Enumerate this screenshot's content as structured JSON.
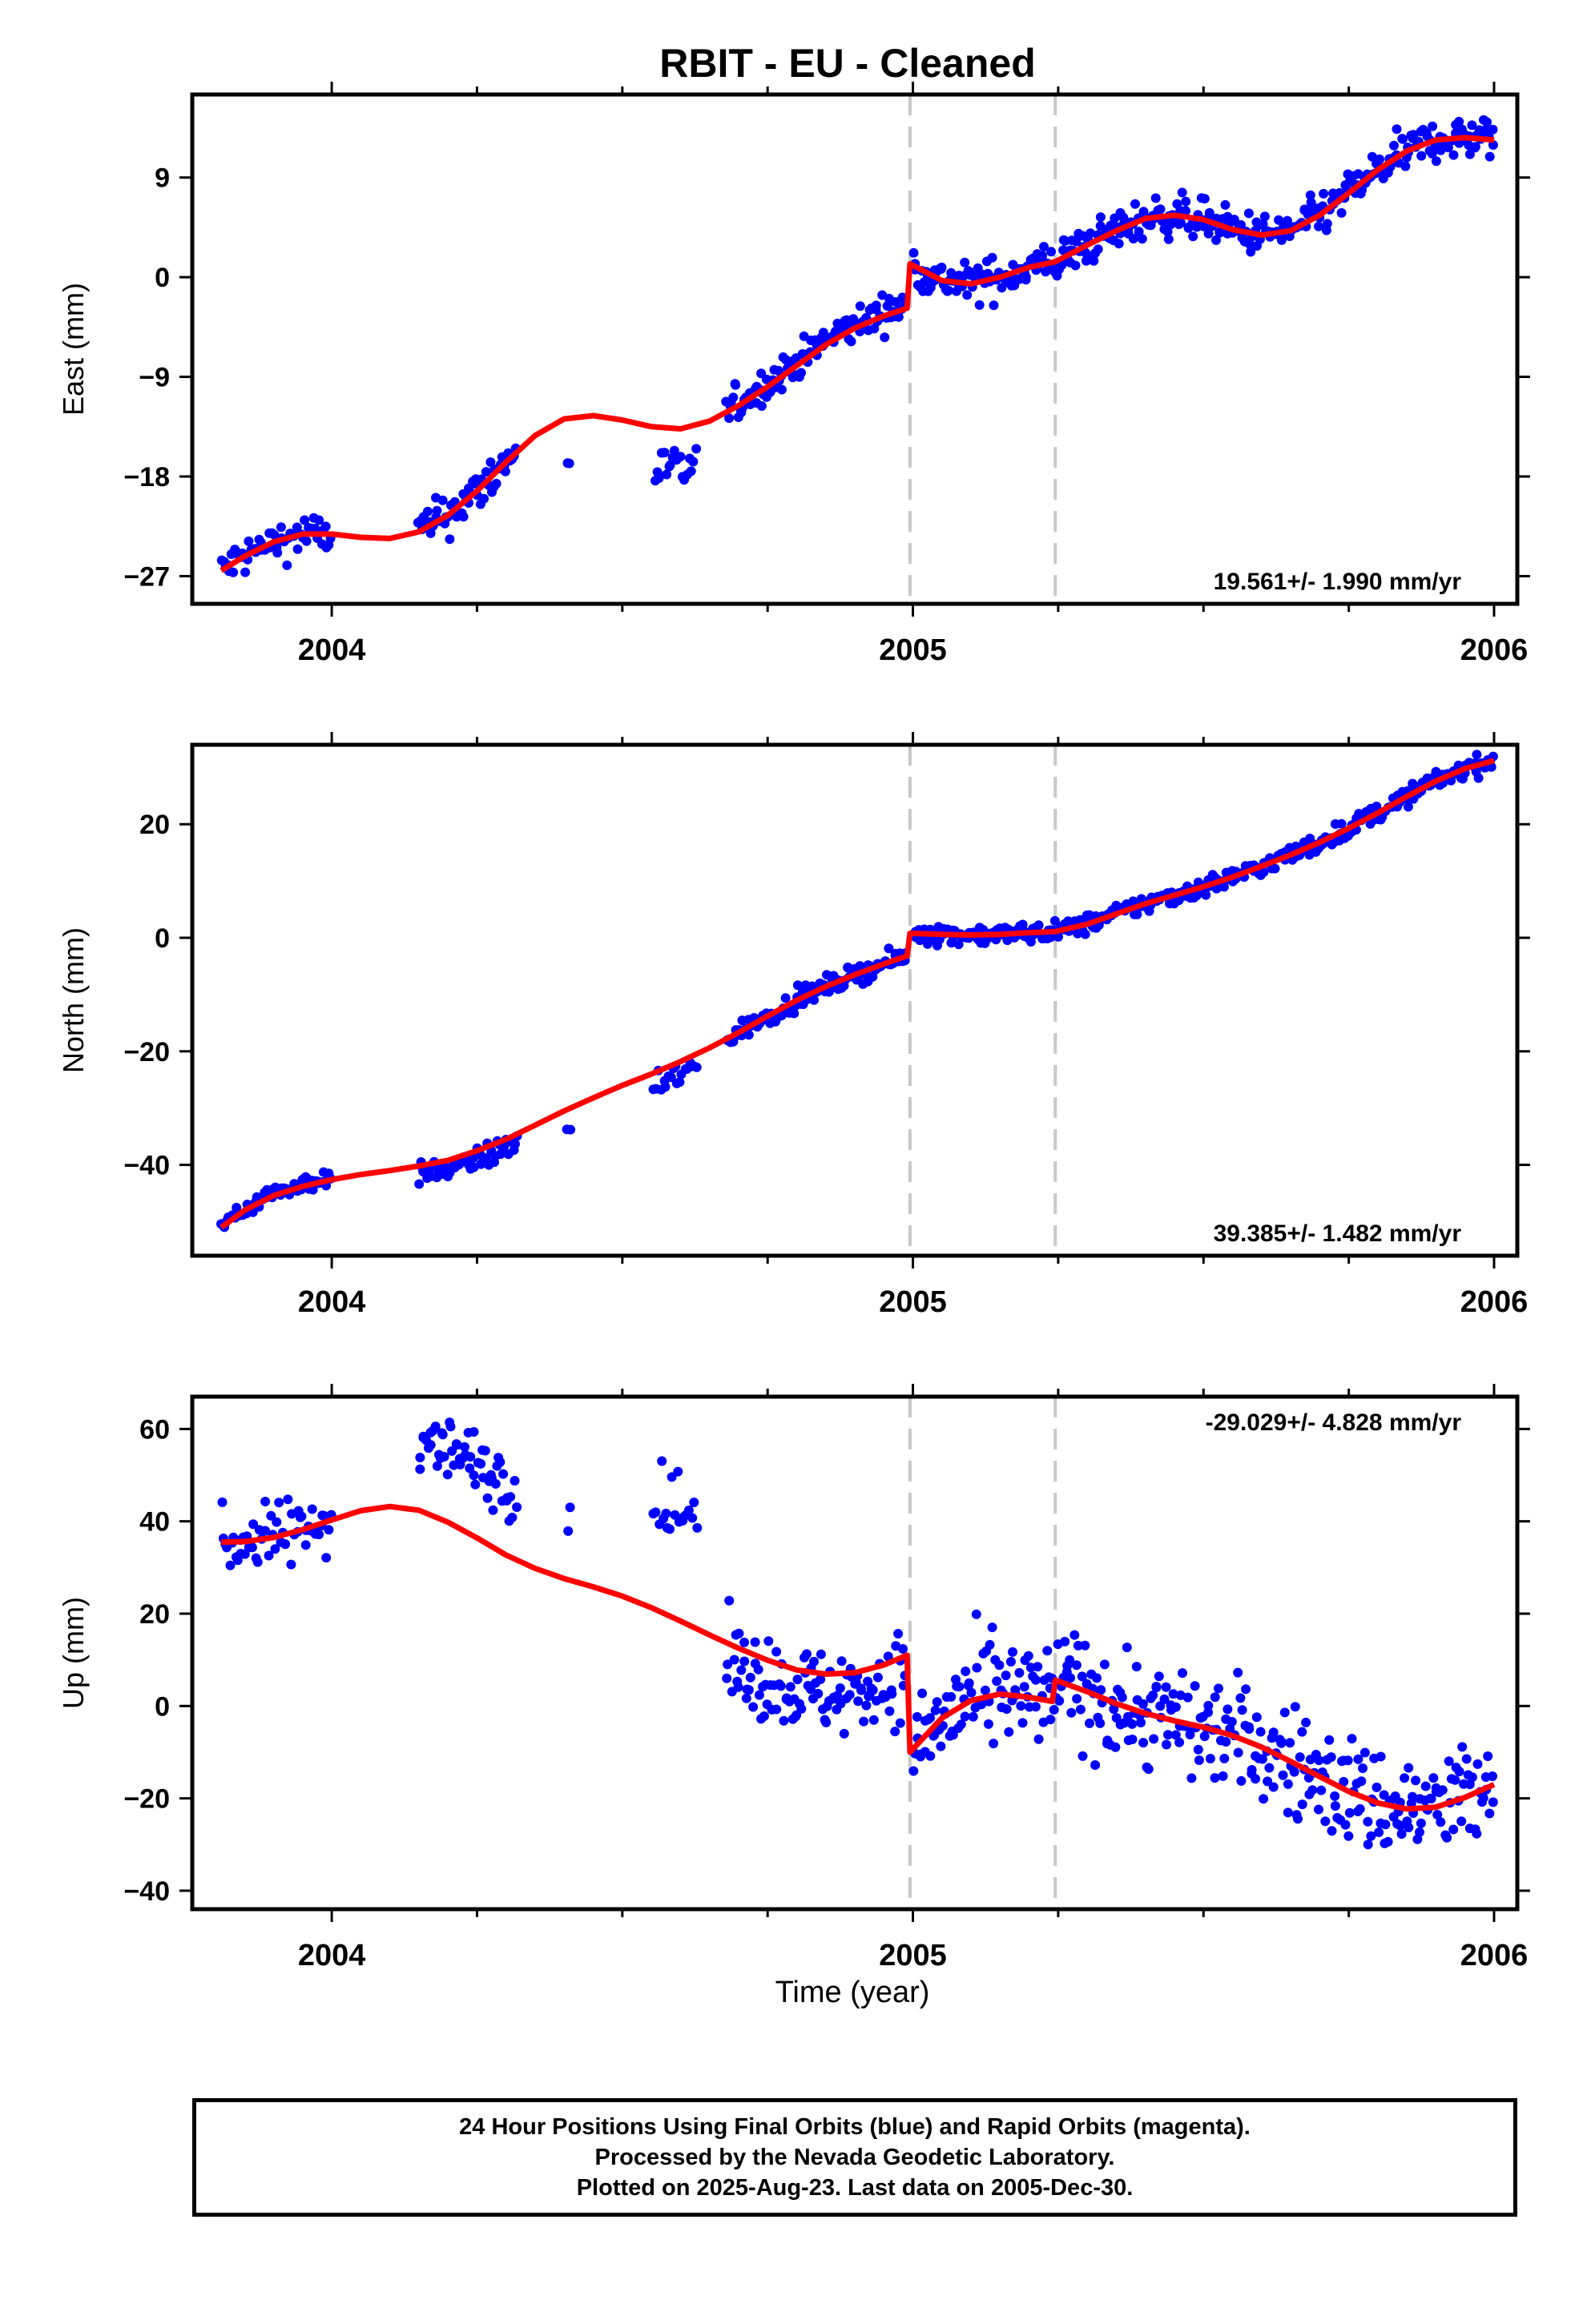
{
  "chart_data": {
    "title": "RBIT  - EU - Cleaned",
    "xlabel": "Time (year)",
    "xlim": [
      2003.76,
      2006.04
    ],
    "x_ticks": [
      2004,
      2005,
      2006
    ],
    "x_tick_labels": [
      "2004",
      "2005",
      "2006"
    ],
    "x_minor_ticks": [
      2004.25,
      2004.5,
      2004.75,
      2005.25,
      2005.5,
      2005.75
    ],
    "breaks": [
      2004.995,
      2005.245
    ],
    "colors": {
      "points": "#0000ff",
      "fit": "#ff0000",
      "breaks": "#c8c8c8",
      "frame": "#000000"
    },
    "panels": [
      {
        "type": "scatter",
        "ylabel": "East (mm)",
        "ylim": [
          -29.5,
          16.5
        ],
        "y_ticks": [
          -27,
          -18,
          -9,
          0,
          9
        ],
        "y_tick_labels": [
          "−27",
          "−18",
          "−9",
          "0",
          "9"
        ],
        "rate": "19.561+/- 1.990 mm/yr",
        "rate_position": "bottom-right",
        "fit_knots": [
          [
            2003.81,
            -26.5
          ],
          [
            2003.85,
            -25.2
          ],
          [
            2003.9,
            -23.9
          ],
          [
            2003.95,
            -23.2
          ],
          [
            2004.0,
            -23.2
          ],
          [
            2004.05,
            -23.5
          ],
          [
            2004.1,
            -23.6
          ],
          [
            2004.15,
            -23.0
          ],
          [
            2004.2,
            -21.5
          ],
          [
            2004.25,
            -19.3
          ],
          [
            2004.3,
            -16.7
          ],
          [
            2004.35,
            -14.3
          ],
          [
            2004.4,
            -12.8
          ],
          [
            2004.45,
            -12.5
          ],
          [
            2004.5,
            -12.9
          ],
          [
            2004.55,
            -13.5
          ],
          [
            2004.6,
            -13.7
          ],
          [
            2004.65,
            -13.0
          ],
          [
            2004.7,
            -11.6
          ],
          [
            2004.75,
            -9.9
          ],
          [
            2004.8,
            -8.0
          ],
          [
            2004.85,
            -6.1
          ],
          [
            2004.9,
            -4.6
          ],
          [
            2004.95,
            -3.5
          ],
          [
            2004.99,
            -2.8
          ],
          [
            2004.995,
            1.2
          ],
          [
            2005.05,
            -0.3
          ],
          [
            2005.1,
            -0.6
          ],
          [
            2005.15,
            0.0
          ],
          [
            2005.2,
            0.9
          ],
          [
            2005.245,
            1.4
          ],
          [
            2005.3,
            2.9
          ],
          [
            2005.35,
            4.2
          ],
          [
            2005.4,
            5.3
          ],
          [
            2005.45,
            5.6
          ],
          [
            2005.5,
            5.2
          ],
          [
            2005.55,
            4.3
          ],
          [
            2005.6,
            3.8
          ],
          [
            2005.65,
            4.2
          ],
          [
            2005.7,
            5.6
          ],
          [
            2005.75,
            7.6
          ],
          [
            2005.8,
            9.7
          ],
          [
            2005.85,
            11.4
          ],
          [
            2005.9,
            12.4
          ],
          [
            2005.95,
            12.6
          ],
          [
            2006.0,
            12.4
          ]
        ],
        "point_segments": [
          {
            "start": 2003.81,
            "end": 2004.0,
            "step": 0.0035,
            "fit_offset": 0,
            "noise": 1.3
          },
          {
            "start": 2004.15,
            "end": 2004.32,
            "step": 0.003,
            "fit_offset": 0,
            "noise": 1.4
          },
          {
            "start": 2004.405,
            "end": 2004.41,
            "step": 0.004,
            "fit_offset": -3.9,
            "noise": 0.5
          },
          {
            "start": 2004.555,
            "end": 2004.63,
            "step": 0.004,
            "fit_offset": -3.8,
            "noise": 1.4
          },
          {
            "start": 2004.68,
            "end": 2004.99,
            "step": 0.0028,
            "fit_offset": 0.3,
            "noise": 1.1
          },
          {
            "start": 2005.0,
            "end": 2006.0,
            "step": 0.0028,
            "fit_offset": 0,
            "noise": 1.3
          }
        ]
      },
      {
        "type": "scatter",
        "ylabel": "North (mm)",
        "ylim": [
          -56,
          34
        ],
        "y_ticks": [
          -40,
          -20,
          0,
          20
        ],
        "y_tick_labels": [
          "−40",
          "−20",
          "0",
          "20"
        ],
        "rate": "39.385+/- 1.482 mm/yr",
        "rate_position": "bottom-right",
        "fit_knots": [
          [
            2003.81,
            -51.0
          ],
          [
            2003.85,
            -48.0
          ],
          [
            2003.9,
            -45.4
          ],
          [
            2003.95,
            -43.8
          ],
          [
            2004.0,
            -42.6
          ],
          [
            2004.05,
            -41.7
          ],
          [
            2004.1,
            -41.0
          ],
          [
            2004.15,
            -40.2
          ],
          [
            2004.2,
            -39.2
          ],
          [
            2004.25,
            -37.5
          ],
          [
            2004.3,
            -35.5
          ],
          [
            2004.35,
            -33.0
          ],
          [
            2004.4,
            -30.5
          ],
          [
            2004.45,
            -28.2
          ],
          [
            2004.5,
            -26.0
          ],
          [
            2004.55,
            -24.0
          ],
          [
            2004.6,
            -21.8
          ],
          [
            2004.65,
            -19.4
          ],
          [
            2004.7,
            -16.7
          ],
          [
            2004.75,
            -13.8
          ],
          [
            2004.8,
            -11.0
          ],
          [
            2004.85,
            -8.6
          ],
          [
            2004.9,
            -6.5
          ],
          [
            2004.95,
            -4.6
          ],
          [
            2004.99,
            -3.2
          ],
          [
            2004.995,
            0.8
          ],
          [
            2005.05,
            0.6
          ],
          [
            2005.1,
            0.5
          ],
          [
            2005.15,
            0.6
          ],
          [
            2005.2,
            0.9
          ],
          [
            2005.245,
            1.1
          ],
          [
            2005.3,
            2.4
          ],
          [
            2005.35,
            4.2
          ],
          [
            2005.4,
            6.0
          ],
          [
            2005.45,
            7.5
          ],
          [
            2005.5,
            9.0
          ],
          [
            2005.55,
            10.7
          ],
          [
            2005.6,
            12.6
          ],
          [
            2005.65,
            14.6
          ],
          [
            2005.7,
            16.8
          ],
          [
            2005.75,
            19.3
          ],
          [
            2005.8,
            22.0
          ],
          [
            2005.85,
            24.9
          ],
          [
            2005.9,
            27.6
          ],
          [
            2005.95,
            29.8
          ],
          [
            2006.0,
            31.2
          ]
        ],
        "point_segments": [
          {
            "start": 2003.81,
            "end": 2004.0,
            "step": 0.0035,
            "fit_offset": 0.5,
            "noise": 1.2
          },
          {
            "start": 2004.15,
            "end": 2004.32,
            "step": 0.003,
            "fit_offset": -1.5,
            "noise": 1.3
          },
          {
            "start": 2004.405,
            "end": 2004.41,
            "step": 0.004,
            "fit_offset": -3.5,
            "noise": 0.5
          },
          {
            "start": 2004.555,
            "end": 2004.63,
            "step": 0.004,
            "fit_offset": -2.5,
            "noise": 2.2
          },
          {
            "start": 2004.68,
            "end": 2004.99,
            "step": 0.0028,
            "fit_offset": 0,
            "noise": 1.2
          },
          {
            "start": 2005.0,
            "end": 2006.0,
            "step": 0.0028,
            "fit_offset": 0,
            "noise": 1.2
          }
        ]
      },
      {
        "type": "scatter",
        "ylabel": "Up (mm)",
        "ylim": [
          -44,
          67
        ],
        "y_ticks": [
          -40,
          -20,
          0,
          20,
          40,
          60
        ],
        "y_tick_labels": [
          "−40",
          "−20",
          "0",
          "20",
          "40",
          "60"
        ],
        "rate": "-29.029+/- 4.828 mm/yr",
        "rate_position": "top-right",
        "fit_knots": [
          [
            2003.81,
            35.5
          ],
          [
            2003.85,
            35.6
          ],
          [
            2003.9,
            36.5
          ],
          [
            2003.95,
            38.2
          ],
          [
            2004.0,
            40.3
          ],
          [
            2004.05,
            42.3
          ],
          [
            2004.1,
            43.2
          ],
          [
            2004.15,
            42.4
          ],
          [
            2004.2,
            39.8
          ],
          [
            2004.25,
            36.4
          ],
          [
            2004.3,
            32.7
          ],
          [
            2004.35,
            29.8
          ],
          [
            2004.4,
            27.6
          ],
          [
            2004.45,
            25.8
          ],
          [
            2004.5,
            23.8
          ],
          [
            2004.55,
            21.3
          ],
          [
            2004.6,
            18.4
          ],
          [
            2004.65,
            15.4
          ],
          [
            2004.7,
            12.5
          ],
          [
            2004.75,
            9.9
          ],
          [
            2004.8,
            7.8
          ],
          [
            2004.85,
            6.9
          ],
          [
            2004.9,
            7.2
          ],
          [
            2004.95,
            8.9
          ],
          [
            2004.99,
            11.0
          ],
          [
            2004.995,
            -10.0
          ],
          [
            2005.05,
            -2.6
          ],
          [
            2005.1,
            1.2
          ],
          [
            2005.15,
            2.6
          ],
          [
            2005.2,
            1.9
          ],
          [
            2005.24,
            1.0
          ],
          [
            2005.245,
            5.6
          ],
          [
            2005.3,
            3.1
          ],
          [
            2005.35,
            0.5
          ],
          [
            2005.4,
            -1.6
          ],
          [
            2005.45,
            -3.2
          ],
          [
            2005.5,
            -4.6
          ],
          [
            2005.55,
            -6.4
          ],
          [
            2005.6,
            -8.9
          ],
          [
            2005.65,
            -12.0
          ],
          [
            2005.7,
            -15.3
          ],
          [
            2005.75,
            -18.5
          ],
          [
            2005.8,
            -21.0
          ],
          [
            2005.85,
            -22.3
          ],
          [
            2005.9,
            -21.9
          ],
          [
            2005.95,
            -19.8
          ],
          [
            2006.0,
            -17.0
          ]
        ],
        "point_segments": [
          {
            "start": 2003.81,
            "end": 2004.0,
            "step": 0.0035,
            "fit_offset": 0,
            "noise": 5.0
          },
          {
            "start": 2004.15,
            "end": 2004.32,
            "step": 0.003,
            "fit_offset": 16,
            "noise": 5.0
          },
          {
            "start": 2004.405,
            "end": 2004.41,
            "step": 0.004,
            "fit_offset": 16,
            "noise": 8.0
          },
          {
            "start": 2004.555,
            "end": 2004.63,
            "step": 0.004,
            "fit_offset": 24,
            "noise": 5.5
          },
          {
            "start": 2004.68,
            "end": 2004.99,
            "step": 0.0028,
            "fit_offset": -4,
            "noise": 6.5
          },
          {
            "start": 2005.0,
            "end": 2006.0,
            "step": 0.0028,
            "fit_offset": 0,
            "noise": 8.5
          }
        ]
      }
    ]
  },
  "footer": {
    "line1": "24 Hour Positions Using Final Orbits (blue) and Rapid Orbits (magenta).",
    "line2": "Processed by the Nevada Geodetic Laboratory.",
    "line3": "Plotted on 2025-Aug-23. Last data on 2005-Dec-30."
  }
}
